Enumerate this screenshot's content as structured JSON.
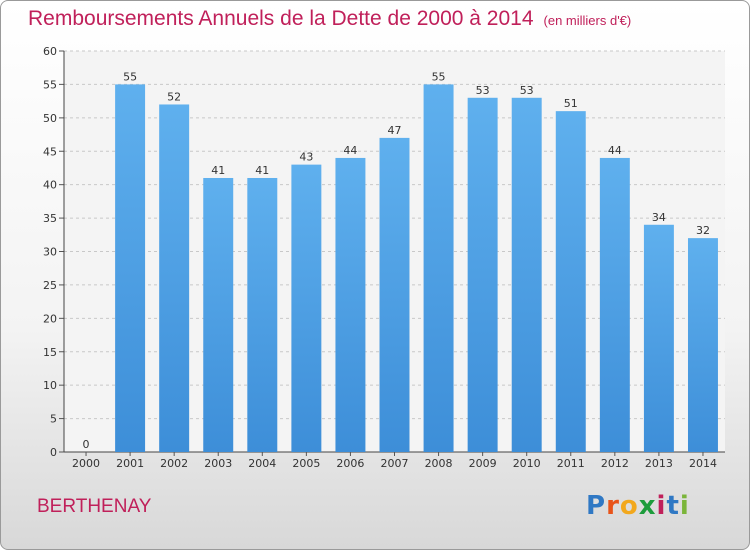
{
  "chart_data": {
    "type": "bar",
    "title": "Remboursements Annuels de la Dette de 2000 à 2014",
    "unit": "(en milliers d'€)",
    "categories": [
      "2000",
      "2001",
      "2002",
      "2003",
      "2004",
      "2005",
      "2006",
      "2007",
      "2008",
      "2009",
      "2010",
      "2011",
      "2012",
      "2013",
      "2014"
    ],
    "values": [
      0,
      55,
      52,
      41,
      41,
      43,
      44,
      47,
      55,
      53,
      53,
      51,
      44,
      34,
      32
    ],
    "ylim": [
      0,
      60
    ],
    "yticks": [
      0,
      5,
      10,
      15,
      20,
      25,
      30,
      35,
      40,
      45,
      50,
      55,
      60
    ],
    "xlabel": "",
    "ylabel": "",
    "grid": true,
    "bar_color": "#3d8ed8",
    "title_color": "#c0205a"
  },
  "commune": "BERTHENAY",
  "brand": {
    "letters": [
      "P",
      "r",
      "o",
      "x",
      "i",
      "t",
      "i"
    ],
    "colors": [
      "#2f78c4",
      "#e8541a",
      "#f2a81d",
      "#1d9c3c",
      "#c0205a",
      "#2f78c4",
      "#7bb53a"
    ]
  }
}
